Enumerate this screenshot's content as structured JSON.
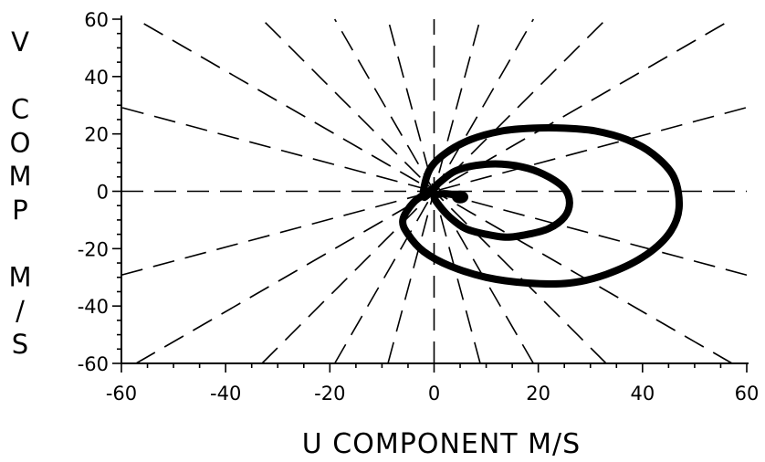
{
  "chart_data": {
    "type": "line",
    "title": "",
    "xlabel": "U COMPONENT  M/S",
    "ylabel": "V COMP M/S",
    "ylabel_lines": [
      "V",
      "",
      "C",
      "O",
      "M",
      "P",
      "",
      "M",
      "/",
      "S"
    ],
    "xlim": [
      -60,
      60
    ],
    "ylim": [
      -60,
      60
    ],
    "xticks": [
      -60,
      -40,
      -20,
      0,
      20,
      40,
      60
    ],
    "xtick_labels": [
      "-60",
      "-40",
      "-20",
      "0",
      "20",
      "40",
      "60"
    ],
    "yticks": [
      60,
      40,
      20,
      0,
      -20,
      -40,
      -60
    ],
    "ytick_labels": [
      "60",
      "40",
      "20",
      "0",
      "-20",
      "-40",
      "-60"
    ],
    "minor_tick_step": 5,
    "grid": false,
    "reference_line_angles_deg": [
      0,
      15,
      30,
      45,
      60,
      75,
      90,
      105,
      120,
      135,
      150,
      165
    ],
    "series": [
      {
        "x": [
          5,
          3,
          1,
          0,
          1,
          3,
          6,
          10,
          14,
          18,
          22,
          25,
          26,
          25,
          22,
          18,
          13,
          8,
          4,
          1,
          -2,
          -1,
          2,
          7,
          13,
          19,
          25,
          31,
          37,
          42,
          46,
          47,
          45,
          40,
          33,
          26,
          18,
          10,
          3,
          -2,
          -5,
          -6,
          -4,
          -1,
          0
        ],
        "y": [
          -2,
          -1,
          -1,
          -2,
          -5,
          -9,
          -13,
          -15,
          -16,
          -15,
          -13,
          -9,
          -4,
          1,
          5,
          8,
          9.5,
          9,
          7,
          3,
          -2,
          7,
          13,
          18,
          21,
          22,
          22,
          21,
          18,
          13,
          5,
          -6,
          -15,
          -23,
          -29,
          -32,
          -32,
          -30,
          -26,
          -21,
          -15,
          -10,
          -4,
          0,
          1
        ],
        "color": "#000000"
      }
    ]
  }
}
